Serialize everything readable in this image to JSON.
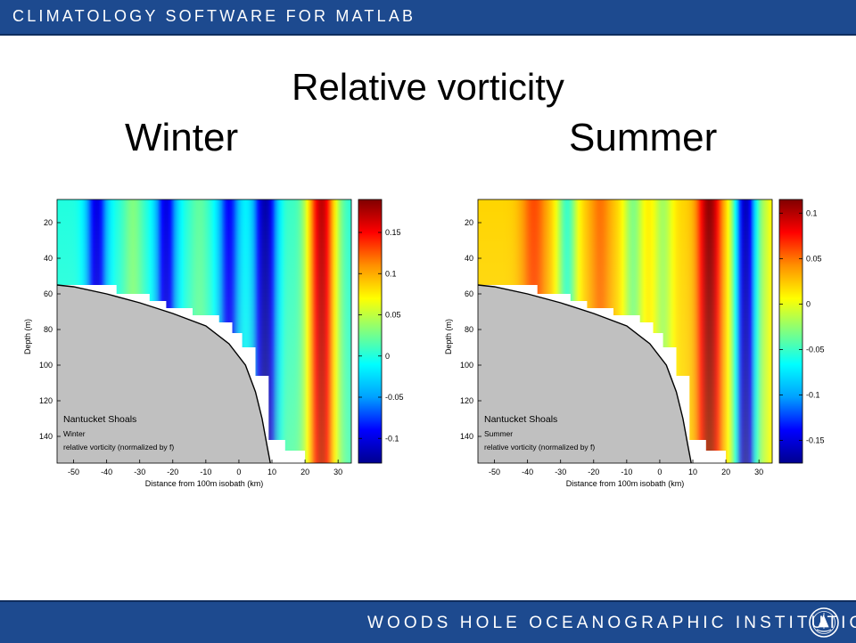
{
  "header": {
    "brand": "CLIMATOLOGY SOFTWARE FOR MATLAB"
  },
  "footer": {
    "institution": "WOODS HOLE OCEANOGRAPHIC INSTITUTION",
    "logo_icon": "whoi-seal-icon"
  },
  "slide": {
    "title": "Relative vorticity",
    "left_heading": "Winter",
    "right_heading": "Summer"
  },
  "colormap": [
    "#00008f",
    "#0000ff",
    "#00a0ff",
    "#00ffff",
    "#80ff80",
    "#ffff00",
    "#ff9000",
    "#ff0000",
    "#800000"
  ],
  "colors": {
    "topography": "#c0c0c0",
    "bar": "#1d4a8f"
  },
  "chart_data": [
    {
      "type": "heatmap",
      "title": "Winter",
      "xlabel": "Distance from 100m isobath (km)",
      "ylabel": "Depth (m)",
      "xlim": [
        -55,
        34
      ],
      "ylim": [
        155,
        7
      ],
      "y_reversed": true,
      "xticks": [
        -50,
        -40,
        -30,
        -20,
        -10,
        0,
        10,
        20,
        30
      ],
      "yticks": [
        20,
        40,
        60,
        80,
        100,
        120,
        140
      ],
      "colorbar": {
        "range": [
          -0.13,
          0.19
        ],
        "ticks": [
          -0.1,
          -0.05,
          0,
          0.05,
          0.1,
          0.15
        ]
      },
      "annotation": [
        "Nantucket Shoals",
        "Winter",
        "relative vorticity (normalized by f)"
      ],
      "background": 0.0,
      "features": [
        {
          "x": -43,
          "width": 3.2,
          "value": -0.1
        },
        {
          "x": -32,
          "width": 3.0,
          "value": 0.03
        },
        {
          "x": -22,
          "width": 3.2,
          "value": -0.1
        },
        {
          "x": -12,
          "width": 3.0,
          "value": 0.02
        },
        {
          "x": -3,
          "width": 3.2,
          "value": -0.09
        },
        {
          "x": 8,
          "width": 3.6,
          "value": -0.12
        },
        {
          "x": 14,
          "width": 3.0,
          "value": 0.01
        },
        {
          "x": 25,
          "width": 4.5,
          "value": 0.17
        }
      ],
      "topography": [
        [
          -55,
          55
        ],
        [
          -50,
          56
        ],
        [
          -40,
          60
        ],
        [
          -30,
          65
        ],
        [
          -20,
          71
        ],
        [
          -10,
          78
        ],
        [
          -3,
          88
        ],
        [
          2,
          100
        ],
        [
          5,
          115
        ],
        [
          7,
          130
        ],
        [
          8.5,
          145
        ],
        [
          9.5,
          155
        ]
      ],
      "mask_steps": [
        [
          -55,
          55
        ],
        [
          -37,
          55
        ],
        [
          -37,
          60
        ],
        [
          -27,
          60
        ],
        [
          -27,
          64
        ],
        [
          -22,
          64
        ],
        [
          -22,
          68
        ],
        [
          -14,
          68
        ],
        [
          -14,
          72
        ],
        [
          -6,
          72
        ],
        [
          -6,
          76
        ],
        [
          -2,
          76
        ],
        [
          -2,
          82
        ],
        [
          1,
          82
        ],
        [
          1,
          90
        ],
        [
          5,
          90
        ],
        [
          5,
          106
        ],
        [
          9,
          106
        ],
        [
          9,
          142
        ],
        [
          14,
          142
        ],
        [
          14,
          148
        ],
        [
          20,
          148
        ],
        [
          20,
          155
        ]
      ]
    },
    {
      "type": "heatmap",
      "title": "Summer",
      "xlabel": "Distance from 100m isobath (km)",
      "ylabel": "Depth (m)",
      "xlim": [
        -55,
        34
      ],
      "ylim": [
        155,
        7
      ],
      "y_reversed": true,
      "xticks": [
        -50,
        -40,
        -30,
        -20,
        -10,
        0,
        10,
        20,
        30
      ],
      "yticks": [
        20,
        40,
        60,
        80,
        100,
        120,
        140
      ],
      "colorbar": {
        "range": [
          -0.175,
          0.115
        ],
        "ticks": [
          -0.15,
          -0.1,
          -0.05,
          0,
          0.05,
          0.1
        ]
      },
      "annotation": [
        "Nantucket Shoals",
        "Summer",
        "relative vorticity (normalized by f)"
      ],
      "background": 0.02,
      "features": [
        {
          "x": -38,
          "width": 4.0,
          "value": 0.06
        },
        {
          "x": -28,
          "width": 3.0,
          "value": -0.05
        },
        {
          "x": -18,
          "width": 3.5,
          "value": 0.05
        },
        {
          "x": -8,
          "width": 3.0,
          "value": -0.03
        },
        {
          "x": 1,
          "width": 3.0,
          "value": -0.02
        },
        {
          "x": 15,
          "width": 3.6,
          "value": 0.11
        },
        {
          "x": 26,
          "width": 3.6,
          "value": -0.16
        },
        {
          "x": 32,
          "width": 2.5,
          "value": 0.0
        }
      ],
      "topography": [
        [
          -55,
          55
        ],
        [
          -50,
          56
        ],
        [
          -40,
          60
        ],
        [
          -30,
          65
        ],
        [
          -20,
          71
        ],
        [
          -10,
          78
        ],
        [
          -3,
          88
        ],
        [
          2,
          100
        ],
        [
          5,
          115
        ],
        [
          7,
          130
        ],
        [
          8.5,
          145
        ],
        [
          9.5,
          155
        ]
      ],
      "mask_steps": [
        [
          -55,
          55
        ],
        [
          -37,
          55
        ],
        [
          -37,
          60
        ],
        [
          -27,
          60
        ],
        [
          -27,
          64
        ],
        [
          -22,
          64
        ],
        [
          -22,
          68
        ],
        [
          -14,
          68
        ],
        [
          -14,
          72
        ],
        [
          -6,
          72
        ],
        [
          -6,
          76
        ],
        [
          -2,
          76
        ],
        [
          -2,
          82
        ],
        [
          1,
          82
        ],
        [
          1,
          90
        ],
        [
          5,
          90
        ],
        [
          5,
          106
        ],
        [
          9,
          106
        ],
        [
          9,
          142
        ],
        [
          14,
          142
        ],
        [
          14,
          148
        ],
        [
          20,
          148
        ],
        [
          20,
          155
        ]
      ]
    }
  ]
}
